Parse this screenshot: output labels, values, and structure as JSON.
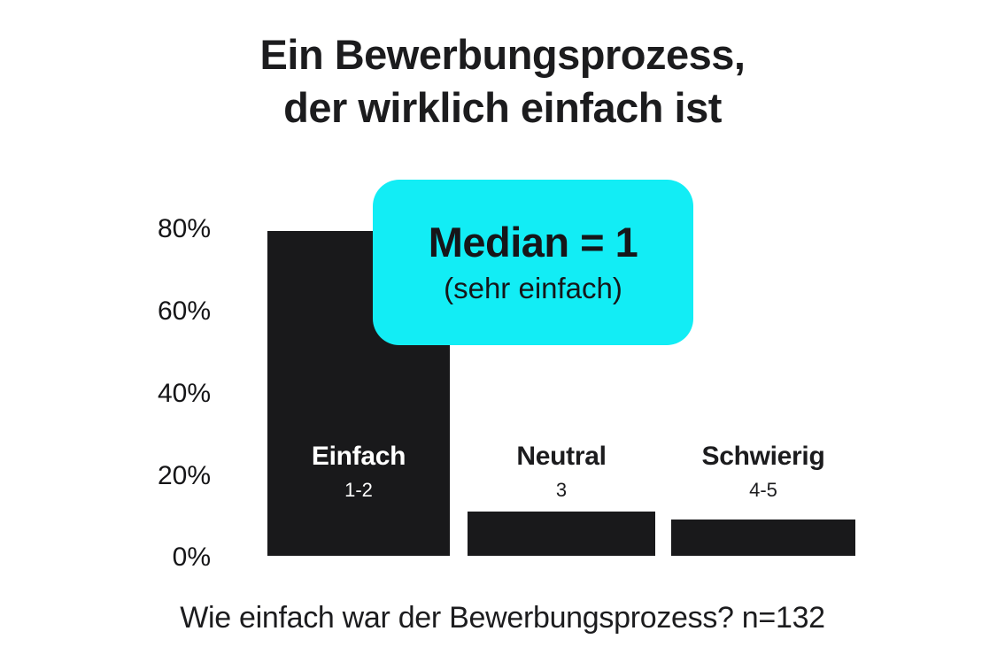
{
  "title": {
    "line1": "Ein Bewerbungsprozess,",
    "line2": "der wirklich einfach ist"
  },
  "callout": {
    "heading": "Median = 1",
    "subheading": "(sehr einfach)"
  },
  "caption": "Wie einfach war der Bewerbungsprozess? n=132",
  "colors": {
    "accent_cyan": "#12EDF5",
    "bar_black": "#19191B",
    "text_dark": "#1C1C1E",
    "background": "#FFFFFF",
    "bar_label_on_bar": "#FFFFFF"
  },
  "chart_data": {
    "type": "bar",
    "title": "Ein Bewerbungsprozess, der wirklich einfach ist",
    "categories": [
      "Einfach",
      "Neutral",
      "Schwierig"
    ],
    "category_sublabels": [
      "1-2",
      "3",
      "4-5"
    ],
    "values": [
      80,
      11,
      9
    ],
    "unit": "%",
    "xlabel": "",
    "ylabel": "",
    "ylim": [
      0,
      80
    ],
    "yticks": [
      "80%",
      "60%",
      "40%",
      "20%",
      "0%"
    ],
    "grid": false,
    "legend": false,
    "annotation": "Median = 1 (sehr einfach)",
    "sample_size": "n=132",
    "question": "Wie einfach war der Bewerbungsprozess?"
  }
}
